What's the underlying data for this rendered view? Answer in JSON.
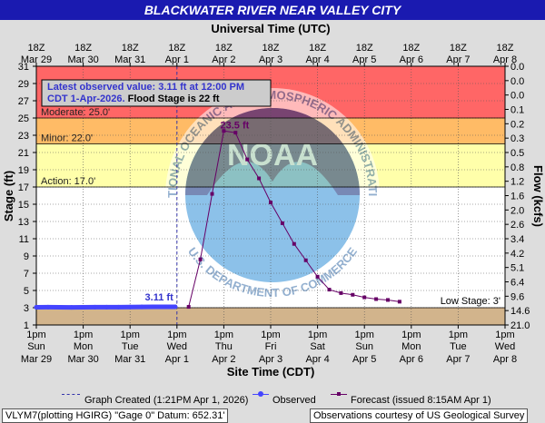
{
  "title": "BLACKWATER RIVER NEAR VALLEY CITY",
  "chart_data": {
    "type": "line",
    "title": "BLACKWATER RIVER NEAR VALLEY CITY",
    "top_axis_title": "Universal Time (UTC)",
    "bottom_axis_title": "Site Time (CDT)",
    "ylabel_left": "Stage (ft)",
    "ylabel_right": "Flow (kcfs)",
    "ylim": [
      1,
      31
    ],
    "y_ticks_left": [
      "1",
      "3",
      "5",
      "7",
      "9",
      "11",
      "13",
      "15",
      "17",
      "19",
      "21",
      "23",
      "25",
      "27",
      "29",
      "31"
    ],
    "y_ticks_right": [
      "0.0",
      "0.0",
      "0.0",
      "0.1",
      "0.2",
      "0.3",
      "0.5",
      "0.8",
      "1.2",
      "1.6",
      "2.0",
      "2.6",
      "3.4",
      "4.2",
      "5.1",
      "6.4",
      "9.6",
      "14.6",
      "21.0"
    ],
    "x_top_labels": [
      [
        "18Z",
        "Mar 29"
      ],
      [
        "18Z",
        "Mar 30"
      ],
      [
        "18Z",
        "Mar 31"
      ],
      [
        "18Z",
        "Apr 1"
      ],
      [
        "18Z",
        "Apr 2"
      ],
      [
        "18Z",
        "Apr 3"
      ],
      [
        "18Z",
        "Apr 4"
      ],
      [
        "18Z",
        "Apr 5"
      ],
      [
        "18Z",
        "Apr 6"
      ],
      [
        "18Z",
        "Apr 7"
      ],
      [
        "18Z",
        "Apr 8"
      ]
    ],
    "x_bottom_labels": [
      [
        "1pm",
        "Sun",
        "Mar 29"
      ],
      [
        "1pm",
        "Mon",
        "Mar 30"
      ],
      [
        "1pm",
        "Tue",
        "Mar 31"
      ],
      [
        "1pm",
        "Wed",
        "Apr 1"
      ],
      [
        "1pm",
        "Thu",
        "Apr 2"
      ],
      [
        "1pm",
        "Fri",
        "Apr 3"
      ],
      [
        "1pm",
        "Sat",
        "Apr 4"
      ],
      [
        "1pm",
        "Sun",
        "Apr 5"
      ],
      [
        "1pm",
        "Mon",
        "Apr 6"
      ],
      [
        "1pm",
        "Tue",
        "Apr 7"
      ],
      [
        "1pm",
        "Wed",
        "Apr 8"
      ]
    ],
    "flood_categories": [
      {
        "name": "Low Stage: 3'",
        "value": 3,
        "color": "#d2b48c"
      },
      {
        "name": "Action: 17.0'",
        "value": 17,
        "color": "#ffffaa"
      },
      {
        "name": "Minor: 22.0'",
        "value": 22,
        "color": "#ffbb66"
      },
      {
        "name": "Moderate: 25.0'",
        "value": 25,
        "color": "#ff6666"
      }
    ],
    "info_box": {
      "line1": "Latest observed value: 3.11 ft at 12:00 PM",
      "line2a": "CDT 1-Apr-2026.",
      "line2b": " Flood Stage is 22 ft"
    },
    "annotations": {
      "latest_observed": "3.11 ft",
      "forecast_peak": "23.5 ft",
      "low_stage": "Low Stage: 3'"
    },
    "watermark": {
      "ring_top": "NATIONAL OCEANIC AND ATMOSPHERIC ADMINISTRATION",
      "ring_bottom": "U.S. DEPARTMENT OF COMMERCE",
      "center": "NOAA"
    },
    "graph_created_day": 3.0,
    "series": [
      {
        "name": "Observed",
        "color": "#4444ff",
        "x_days": [
          0.0,
          0.25,
          0.5,
          0.75,
          1.0,
          1.25,
          1.5,
          1.75,
          2.0,
          2.25,
          2.5,
          2.75,
          2.96
        ],
        "y": [
          3.05,
          3.06,
          3.05,
          3.04,
          3.05,
          3.06,
          3.06,
          3.07,
          3.08,
          3.09,
          3.1,
          3.11,
          3.11
        ]
      },
      {
        "name": "Forecast",
        "color": "#660066",
        "x_days": [
          3.25,
          3.5,
          3.75,
          4.0,
          4.25,
          4.5,
          4.75,
          5.0,
          5.25,
          5.5,
          5.75,
          6.0,
          6.25,
          6.5,
          6.75,
          7.0,
          7.25,
          7.5,
          7.75
        ],
        "y": [
          3.1,
          8.6,
          16.2,
          23.5,
          23.3,
          20.2,
          18.0,
          15.2,
          12.8,
          10.4,
          8.5,
          6.6,
          5.1,
          4.7,
          4.5,
          4.2,
          4.0,
          3.9,
          3.7
        ]
      }
    ]
  },
  "legend": {
    "graph_created": "Graph Created (1:21PM Apr 1, 2026)",
    "observed": "Observed",
    "forecast": "Forecast (issued 8:15AM Apr 1)"
  },
  "footer": {
    "left": "VLYM7(plotting HGIRG) \"Gage 0\" Datum: 652.31'",
    "right": "Observations courtesy of US Geological Survey"
  }
}
